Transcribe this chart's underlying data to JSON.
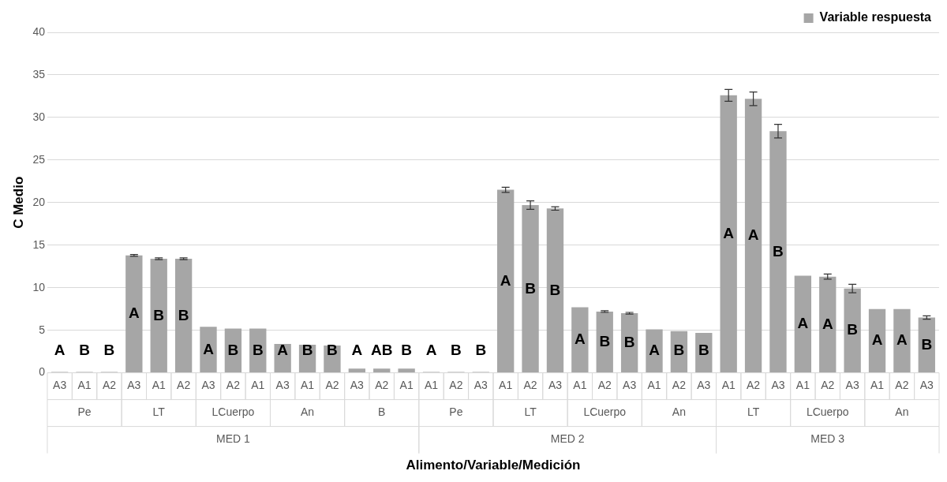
{
  "chart_data": {
    "type": "bar",
    "ylabel": "C Medio",
    "xlabel": "Alimento/Variable/Medición",
    "categories": [
      "A3",
      "A1",
      "A2",
      "A3",
      "A1",
      "A2",
      "A3",
      "A2",
      "A1",
      "A3",
      "A1",
      "A2",
      "A3",
      "A2",
      "A1",
      "A1",
      "A2",
      "A3",
      "A1",
      "A2",
      "A3",
      "A1",
      "A2",
      "A3",
      "A1",
      "A2",
      "A3",
      "A1",
      "A2",
      "A3",
      "A1",
      "A2",
      "A3",
      "A1",
      "A2",
      "A3"
    ],
    "annotations": [
      "Pe",
      "LT",
      "LCuerpo",
      "An",
      "B",
      "Pe",
      "LT",
      "LCuerpo",
      "An",
      "LT",
      "LCuerpo",
      "An",
      "MED 1",
      "MED 2",
      "MED 3"
    ],
    "series": [
      {
        "name": "Variable respuesta",
        "color": "#a6a6a6",
        "values": [
          0.1,
          0.1,
          0.1,
          13.8,
          13.4,
          13.4,
          5.4,
          5.2,
          5.2,
          3.4,
          3.3,
          3.2,
          0.5,
          0.5,
          0.5,
          0.1,
          0.1,
          0.1,
          21.5,
          19.7,
          19.3,
          7.7,
          7.2,
          7.0,
          5.1,
          4.9,
          4.7,
          32.6,
          32.2,
          28.4,
          11.4,
          11.3,
          9.9,
          7.5,
          7.5,
          6.5
        ],
        "errors": [
          null,
          null,
          null,
          0.1,
          0.1,
          0.1,
          null,
          null,
          null,
          null,
          null,
          null,
          null,
          null,
          null,
          null,
          null,
          null,
          0.3,
          0.5,
          0.2,
          null,
          0.1,
          0.1,
          null,
          null,
          null,
          0.7,
          0.8,
          0.8,
          null,
          0.3,
          0.5,
          null,
          null,
          0.2
        ],
        "value_labels": [
          "A",
          "B",
          "B",
          "A",
          "B",
          "B",
          "A",
          "B",
          "B",
          "A",
          "B",
          "B",
          "A",
          "AB",
          "B",
          "A",
          "B",
          "B",
          "A",
          "B",
          "B",
          "A",
          "B",
          "B",
          "A",
          "B",
          "B",
          "A",
          "A",
          "B",
          "A",
          "A",
          "B",
          "A",
          "A",
          "B"
        ]
      }
    ],
    "ylim": [
      0,
      40
    ],
    "yticks": [
      0,
      5,
      10,
      15,
      20,
      25,
      30,
      35,
      40
    ],
    "grid": "y",
    "legend": "top right"
  }
}
